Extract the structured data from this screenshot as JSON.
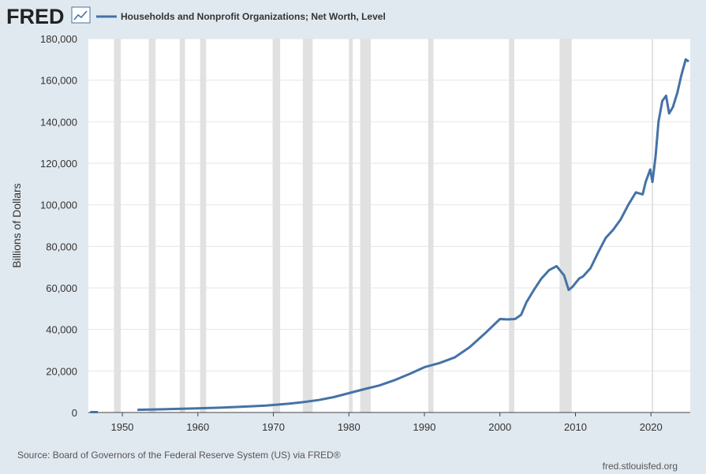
{
  "header": {
    "logo": "FRED",
    "logo_icon": "trend-chart-icon",
    "legend_label": "Households and Nonprofit Organizations; Net Worth, Level"
  },
  "colors": {
    "background": "#e1e9f0",
    "plot_background": "#ffffff",
    "series": "#4572a7",
    "recession": "#e1e1e1",
    "gridline": "#e6e6e6"
  },
  "footer": {
    "source": "Source: Board of Governors of the Federal Reserve System (US) via FRED®",
    "site": "fred.stlouisfed.org"
  },
  "chart_data": {
    "type": "line",
    "title": "",
    "xlabel": "",
    "ylabel": "Billions of Dollars",
    "xlim": [
      1945.5,
      2025.2
    ],
    "ylim": [
      0,
      180000
    ],
    "yticks": [
      0,
      20000,
      40000,
      60000,
      80000,
      100000,
      120000,
      140000,
      160000,
      180000
    ],
    "ytick_labels": [
      "0",
      "20,000",
      "40,000",
      "60,000",
      "80,000",
      "100,000",
      "120,000",
      "140,000",
      "160,000",
      "180,000"
    ],
    "xticks": [
      1950,
      1960,
      1970,
      1980,
      1990,
      2000,
      2010,
      2020
    ],
    "xtick_labels": [
      "1950",
      "1960",
      "1970",
      "1980",
      "1990",
      "2000",
      "2010",
      "2020"
    ],
    "grid": "horizontal",
    "legend": "top-left",
    "recessions": [
      [
        1948.9,
        1949.8
      ],
      [
        1953.5,
        1954.4
      ],
      [
        1957.6,
        1958.3
      ],
      [
        1960.3,
        1961.1
      ],
      [
        1969.9,
        1970.9
      ],
      [
        1973.9,
        1975.2
      ],
      [
        1980.0,
        1980.5
      ],
      [
        1981.5,
        1982.9
      ],
      [
        1990.5,
        1991.2
      ],
      [
        2001.2,
        2001.9
      ],
      [
        2007.9,
        2009.5
      ],
      [
        2020.1,
        2020.3
      ]
    ],
    "series": [
      {
        "name": "Households and Nonprofit Organizations; Net Worth, Level",
        "x": [
          1945.75,
          1946.75,
          1952,
          1955,
          1958,
          1960,
          1963,
          1966,
          1969,
          1972,
          1974,
          1976,
          1978,
          1980,
          1982,
          1984,
          1986,
          1988,
          1990,
          1992,
          1994,
          1996,
          1998,
          1999,
          2000,
          2001,
          2002,
          2002.8,
          2003.5,
          2004.5,
          2005.5,
          2006.5,
          2007.5,
          2008.5,
          2009.1,
          2009.6,
          2010.5,
          2011,
          2012,
          2013,
          2014,
          2015,
          2016,
          2017,
          2018,
          2018.9,
          2019.3,
          2019.9,
          2020.2,
          2020.6,
          2021,
          2021.5,
          2022,
          2022.4,
          2022.9,
          2023.5,
          2024,
          2024.6,
          2025.0
        ],
        "y": [
          200,
          200,
          1300,
          1500,
          1800,
          2000,
          2300,
          2800,
          3300,
          4200,
          5000,
          6000,
          7400,
          9300,
          11200,
          13000,
          15500,
          18500,
          21800,
          23800,
          26500,
          31500,
          38000,
          41500,
          45000,
          44800,
          45000,
          47000,
          53000,
          59000,
          64500,
          68500,
          70500,
          66000,
          59000,
          60500,
          64500,
          65500,
          69500,
          77000,
          84000,
          88000,
          93000,
          100000,
          106000,
          105000,
          111000,
          117000,
          111000,
          123000,
          140000,
          150000,
          152500,
          144000,
          147000,
          154000,
          162000,
          170000,
          169000
        ]
      }
    ]
  }
}
